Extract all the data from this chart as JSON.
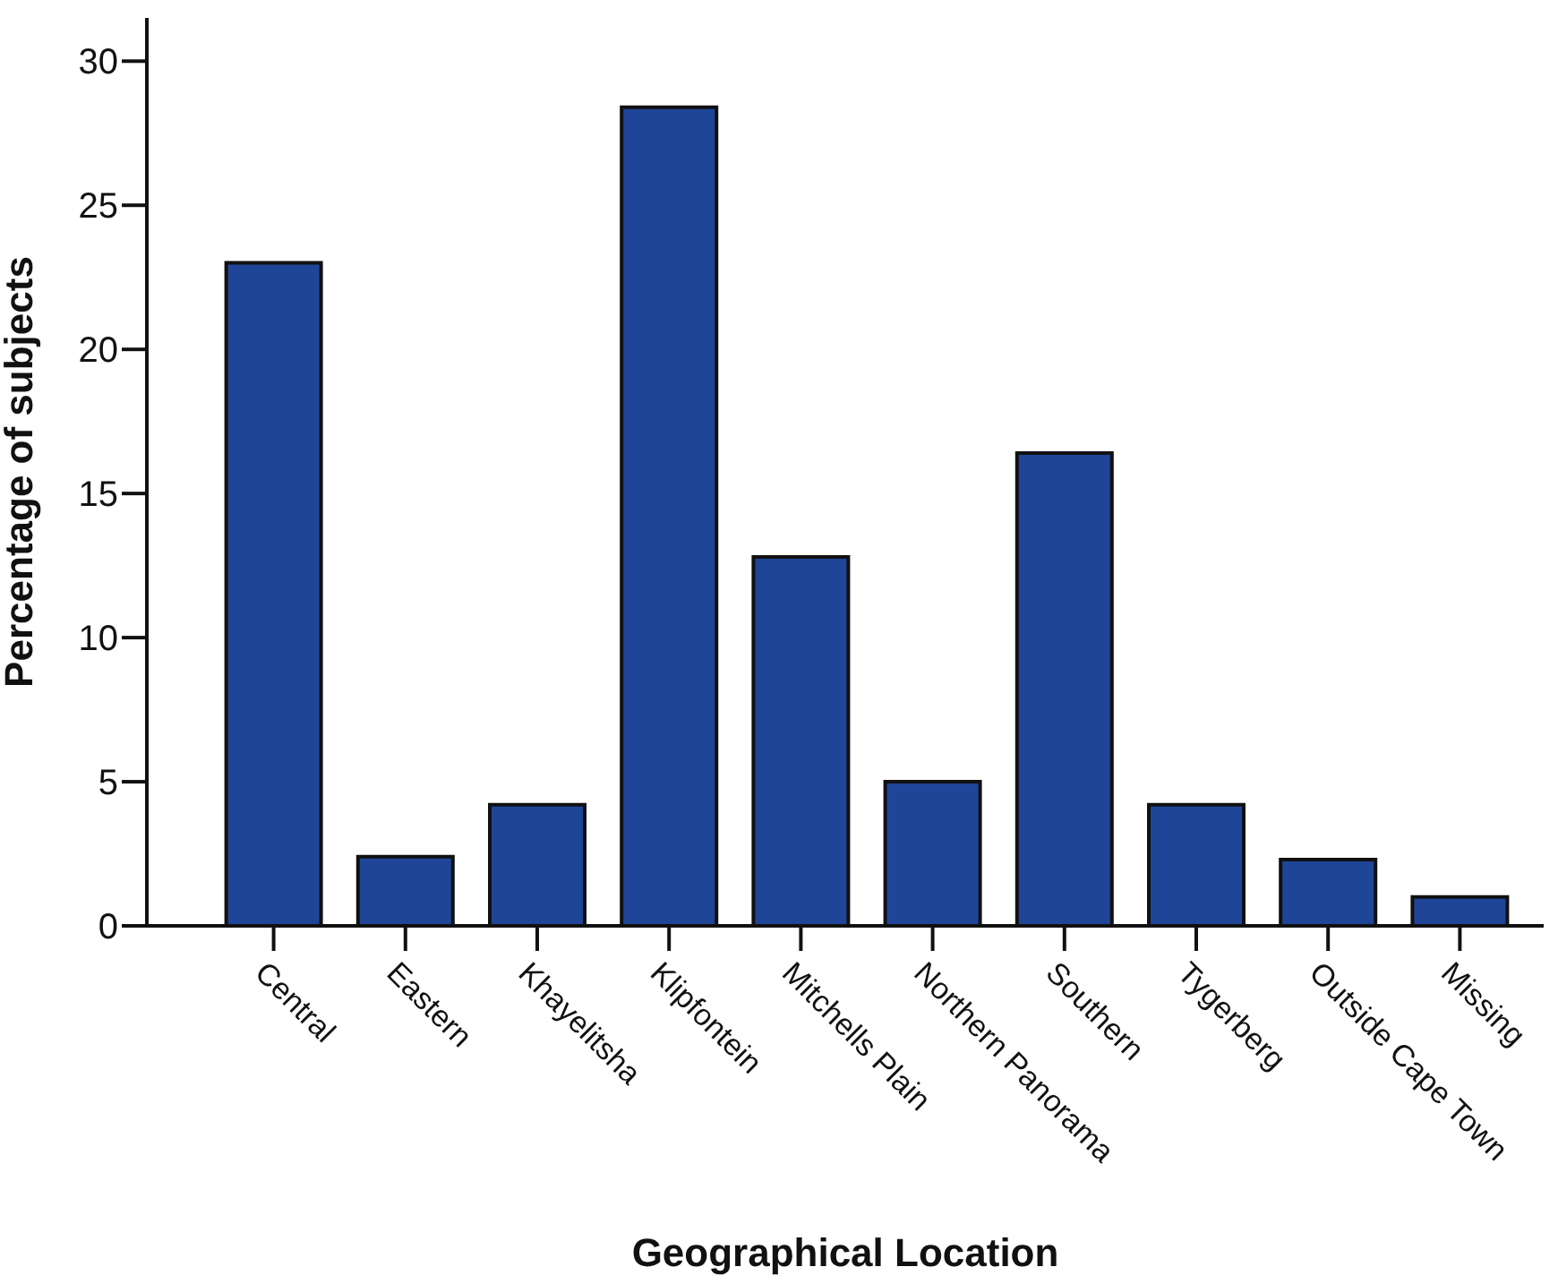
{
  "chart_data": {
    "type": "bar",
    "xlabel": "Geographical Location",
    "ylabel": "Percentage of subjects",
    "categories": [
      "Central",
      "Eastern",
      "Khayelitsha",
      "Klipfontein",
      "Mitchells Plain",
      "Northern Panorama",
      "Southern",
      "Tygerberg",
      "Outside Cape Town",
      "Missing"
    ],
    "values": [
      23.0,
      2.4,
      4.2,
      28.4,
      12.8,
      5.0,
      16.4,
      4.2,
      2.3,
      1.0
    ],
    "color": "#1f4598",
    "ylim": [
      0,
      31.5
    ],
    "yticks": [
      0,
      5,
      10,
      15,
      20,
      25,
      30
    ],
    "grid": false,
    "legend": false
  }
}
